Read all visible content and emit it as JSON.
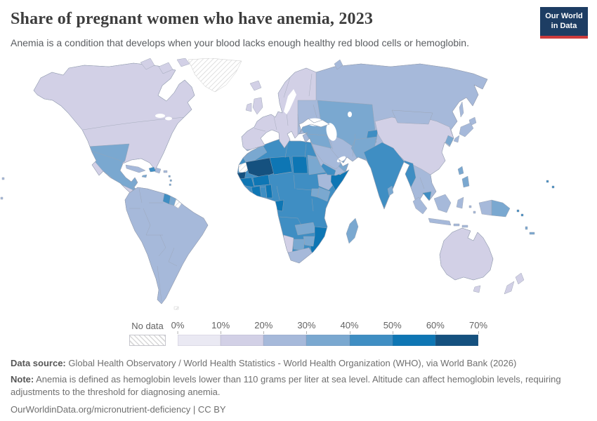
{
  "header": {
    "title": "Share of pregnant women who have anemia, 2023",
    "subtitle": "Anemia is a condition that develops when your blood lacks enough healthy red blood cells or hemoglobin.",
    "logo": {
      "line1": "Our World",
      "line2": "in Data",
      "bg_color": "#1d3d63",
      "accent_color": "#cc3b3c"
    }
  },
  "chart_data": {
    "type": "choropleth-map",
    "title": "Share of pregnant women who have anemia",
    "year": "2023",
    "unit": "%",
    "legend": {
      "no_data_label": "No data",
      "tick_labels": [
        "0%",
        "10%",
        "20%",
        "30%",
        "40%",
        "50%",
        "60%",
        "70%"
      ],
      "bin_ranges": [
        "0-10%",
        "10-20%",
        "20-30%",
        "30-40%",
        "40-50%",
        "50-60%",
        "60-70%"
      ],
      "bin_colors": [
        "#eae9f3",
        "#d2d0e6",
        "#a6b9da",
        "#7aa8d0",
        "#3f8ec3",
        "#0e76b4",
        "#15517f"
      ],
      "no_data_fill": "hatched"
    },
    "regions": {
      "united_states_canada": 1,
      "greenland": "no_data",
      "canadian_arctic": 1,
      "mexico": 3,
      "guatemala": 3,
      "central_america": 2,
      "cuba": 2,
      "haiti": 4,
      "dominican_republic": 2,
      "jamaica": 3,
      "puerto_rico": 2,
      "lesser_antilles": 3,
      "south_america": 2,
      "guyana": 4,
      "suriname": 3,
      "french_guiana": "no_data",
      "falkland_islands": "no_data",
      "iceland": 1,
      "united_kingdom": 1,
      "ireland": 1,
      "western_europe": 1,
      "russia": 2,
      "novaya_zemlya": 2,
      "turkey": 3,
      "syria_iraq": 3,
      "iran": 2,
      "saudi_arabia": 2,
      "yemen": 4,
      "oman": 3,
      "central_asia": 3,
      "kyrgyzstan_tajikistan": 4,
      "afghanistan_pakistan": 3,
      "india": 4,
      "sri_lanka": 3,
      "myanmar": 4,
      "china": 1,
      "mongolia": 2,
      "korea": 3,
      "japan": 2,
      "sakhalin": 2,
      "thailand_vietnam": 2,
      "cambodia": 4,
      "philippines": 3,
      "indonesia": 2,
      "papua_new_guinea": 3,
      "solomon_islands": 4,
      "fiji": 4,
      "vanuatu": 3,
      "pacific_islands": 2,
      "australia": 1,
      "new_zealand": 1,
      "central_africa": 4,
      "morocco": 3,
      "western_sahara": "no_data",
      "senegal": 6,
      "mali": 6,
      "guinea": 5,
      "cote_divoire": 5,
      "ghana": 4,
      "togo_benin": 5,
      "burkina_faso": 5,
      "niger": 5,
      "chad": 5,
      "sudan": 3,
      "ethiopia": 2,
      "somalia": 5,
      "kenya": 3,
      "uganda": 3,
      "gabon": 5,
      "zambia": 3,
      "zimbabwe": 3,
      "botswana": 3,
      "namibia": 1,
      "south_africa": 2,
      "mozambique": 5,
      "madagascar": 3
    }
  },
  "footer": {
    "data_source_label": "Data source:",
    "data_source": " Global Health Observatory / World Health Statistics - World Health Organization (WHO), via World Bank (2026)",
    "note_label": "Note:",
    "note": " Anemia is defined as hemoglobin levels lower than 110 grams per liter at sea level. Altitude can affect hemoglobin levels, requiring adjustments to the threshold for diagnosing anemia.",
    "url": "OurWorldinData.org/micronutrient-deficiency | CC BY"
  }
}
